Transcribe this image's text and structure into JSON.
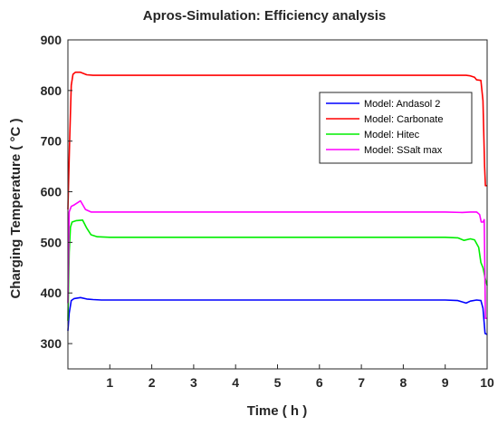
{
  "chart_data": {
    "type": "line",
    "title": "Apros-Simulation: Efficiency analysis",
    "xlabel": "Time ( h )",
    "ylabel": "Charging Temperature ( °C )",
    "xlim": [
      0,
      10
    ],
    "ylim": [
      250,
      900
    ],
    "xticks": [
      1,
      2,
      3,
      4,
      5,
      6,
      7,
      8,
      9,
      10
    ],
    "yticks": [
      300,
      400,
      500,
      600,
      700,
      800,
      900
    ],
    "grid": false,
    "legend_position": "top-right",
    "series": [
      {
        "name": "Model: Andasol 2",
        "color": "#0000ff",
        "x": [
          0,
          0.03,
          0.08,
          0.15,
          0.3,
          0.45,
          0.6,
          0.8,
          1,
          2,
          3,
          4,
          5,
          6,
          7,
          8,
          9,
          9.3,
          9.5,
          9.6,
          9.75,
          9.85,
          9.9,
          9.95,
          10
        ],
        "y": [
          325,
          360,
          385,
          389,
          391,
          388,
          387,
          386,
          386,
          386,
          386,
          386,
          386,
          386,
          386,
          386,
          386,
          385,
          380,
          384,
          386,
          385,
          370,
          320,
          318
        ]
      },
      {
        "name": "Model: Carbonate",
        "color": "#ff0000",
        "x": [
          0,
          0.04,
          0.08,
          0.12,
          0.18,
          0.3,
          0.45,
          0.6,
          1,
          2,
          3,
          4,
          5,
          6,
          7,
          8,
          9,
          9.5,
          9.6,
          9.7,
          9.75,
          9.85,
          9.9,
          9.94,
          9.96,
          10
        ],
        "y": [
          565,
          700,
          810,
          832,
          836,
          836,
          831,
          830,
          830,
          830,
          830,
          830,
          830,
          830,
          830,
          830,
          830,
          830,
          829,
          826,
          821,
          820,
          780,
          650,
          612,
          612
        ]
      },
      {
        "name": "Model: Hitec",
        "color": "#00ee00",
        "x": [
          0,
          0.03,
          0.06,
          0.1,
          0.2,
          0.35,
          0.45,
          0.55,
          0.7,
          1,
          2,
          3,
          4,
          5,
          6,
          7,
          8,
          9,
          9.3,
          9.45,
          9.6,
          9.7,
          9.8,
          9.85,
          9.9,
          9.95,
          10
        ],
        "y": [
          345,
          480,
          530,
          540,
          543,
          544,
          528,
          515,
          511,
          510,
          510,
          510,
          510,
          510,
          510,
          510,
          510,
          510,
          509,
          504,
          507,
          505,
          490,
          460,
          450,
          430,
          415
        ]
      },
      {
        "name": "Model: SSalt max",
        "color": "#ff00ff",
        "x": [
          0,
          0.03,
          0.08,
          0.15,
          0.3,
          0.42,
          0.55,
          0.7,
          1,
          2,
          3,
          4,
          5,
          6,
          7,
          8,
          9,
          9.4,
          9.6,
          9.75,
          9.82,
          9.86,
          9.9,
          9.93,
          9.96,
          10
        ],
        "y": [
          380,
          560,
          571,
          574,
          582,
          565,
          560,
          560,
          560,
          560,
          560,
          560,
          560,
          560,
          560,
          560,
          560,
          559,
          560,
          560,
          555,
          540,
          540,
          545,
          350,
          350
        ]
      }
    ]
  }
}
